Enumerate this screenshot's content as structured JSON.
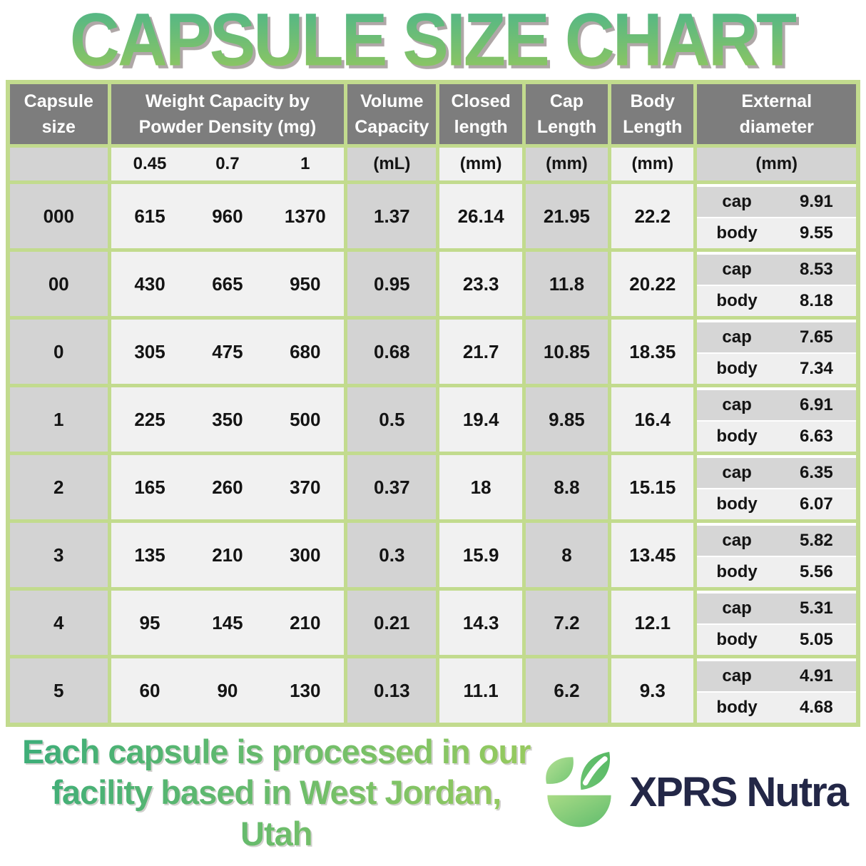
{
  "title": "CAPSULE SIZE CHART",
  "colors": {
    "border_green": "#c2db8e",
    "header_gray": "#7d7d7d",
    "cell_gray": "#d3d3d3",
    "cell_light": "#f1f1f1",
    "cap_row_gray": "#d6d6d6",
    "body_row_light": "#efefef",
    "title_top": "#4db58a",
    "title_bottom": "#93c75e",
    "footer_left": "#3fae78",
    "footer_right": "#96ca5f",
    "logo_navy": "#232747"
  },
  "table": {
    "headers": {
      "capsule_size": "Capsule size",
      "weight_capacity": "Weight Capacity by Powder Density (mg)",
      "volume_capacity": "Volume Capacity",
      "closed_length": "Closed length",
      "cap_length": "Cap Length",
      "body_length": "Body Length",
      "external_diameter": "External diameter"
    },
    "units": {
      "densities": [
        "0.45",
        "0.7",
        "1"
      ],
      "volume": "(mL)",
      "closed": "(mm)",
      "cap": "(mm)",
      "body": "(mm)",
      "external": "(mm)"
    },
    "row_labels": {
      "cap": "cap",
      "body": "body"
    },
    "rows": [
      {
        "size": "000",
        "weights": [
          "615",
          "960",
          "1370"
        ],
        "volume": "1.37",
        "closed": "26.14",
        "cap_length": "21.95",
        "body_length": "22.2",
        "cap_diameter": "9.91",
        "body_diameter": "9.55"
      },
      {
        "size": "00",
        "weights": [
          "430",
          "665",
          "950"
        ],
        "volume": "0.95",
        "closed": "23.3",
        "cap_length": "11.8",
        "body_length": "20.22",
        "cap_diameter": "8.53",
        "body_diameter": "8.18"
      },
      {
        "size": "0",
        "weights": [
          "305",
          "475",
          "680"
        ],
        "volume": "0.68",
        "closed": "21.7",
        "cap_length": "10.85",
        "body_length": "18.35",
        "cap_diameter": "7.65",
        "body_diameter": "7.34"
      },
      {
        "size": "1",
        "weights": [
          "225",
          "350",
          "500"
        ],
        "volume": "0.5",
        "closed": "19.4",
        "cap_length": "9.85",
        "body_length": "16.4",
        "cap_diameter": "6.91",
        "body_diameter": "6.63"
      },
      {
        "size": "2",
        "weights": [
          "165",
          "260",
          "370"
        ],
        "volume": "0.37",
        "closed": "18",
        "cap_length": "8.8",
        "body_length": "15.15",
        "cap_diameter": "6.35",
        "body_diameter": "6.07"
      },
      {
        "size": "3",
        "weights": [
          "135",
          "210",
          "300"
        ],
        "volume": "0.3",
        "closed": "15.9",
        "cap_length": "8",
        "body_length": "13.45",
        "cap_diameter": "5.82",
        "body_diameter": "5.56"
      },
      {
        "size": "4",
        "weights": [
          "95",
          "145",
          "210"
        ],
        "volume": "0.21",
        "closed": "14.3",
        "cap_length": "7.2",
        "body_length": "12.1",
        "cap_diameter": "5.31",
        "body_diameter": "5.05"
      },
      {
        "size": "5",
        "weights": [
          "60",
          "90",
          "130"
        ],
        "volume": "0.13",
        "closed": "11.1",
        "cap_length": "6.2",
        "body_length": "9.3",
        "cap_diameter": "4.91",
        "body_diameter": "4.68"
      }
    ]
  },
  "footer": {
    "line1": "Each capsule is processed in our",
    "line2": "facility based in West Jordan, Utah",
    "brand": "XPRS Nutra"
  },
  "chart_data": {
    "type": "table",
    "title": "CAPSULE SIZE CHART",
    "columns": [
      "Capsule size",
      "Weight Capacity at 0.45 Powder Density (mg)",
      "Weight Capacity at 0.7 Powder Density (mg)",
      "Weight Capacity at 1 Powder Density (mg)",
      "Volume Capacity (mL)",
      "Closed length (mm)",
      "Cap Length (mm)",
      "Body Length (mm)",
      "External diameter cap (mm)",
      "External diameter body (mm)"
    ],
    "rows": [
      [
        "000",
        615,
        960,
        1370,
        1.37,
        26.14,
        21.95,
        22.2,
        9.91,
        9.55
      ],
      [
        "00",
        430,
        665,
        950,
        0.95,
        23.3,
        11.8,
        20.22,
        8.53,
        8.18
      ],
      [
        "0",
        305,
        475,
        680,
        0.68,
        21.7,
        10.85,
        18.35,
        7.65,
        7.34
      ],
      [
        "1",
        225,
        350,
        500,
        0.5,
        19.4,
        9.85,
        16.4,
        6.91,
        6.63
      ],
      [
        "2",
        165,
        260,
        370,
        0.37,
        18,
        8.8,
        15.15,
        6.35,
        6.07
      ],
      [
        "3",
        135,
        210,
        300,
        0.3,
        15.9,
        8,
        13.45,
        5.82,
        5.56
      ],
      [
        "4",
        95,
        145,
        210,
        0.21,
        14.3,
        7.2,
        12.1,
        5.31,
        5.05
      ],
      [
        "5",
        60,
        90,
        130,
        0.13,
        11.1,
        6.2,
        9.3,
        4.91,
        4.68
      ]
    ]
  }
}
